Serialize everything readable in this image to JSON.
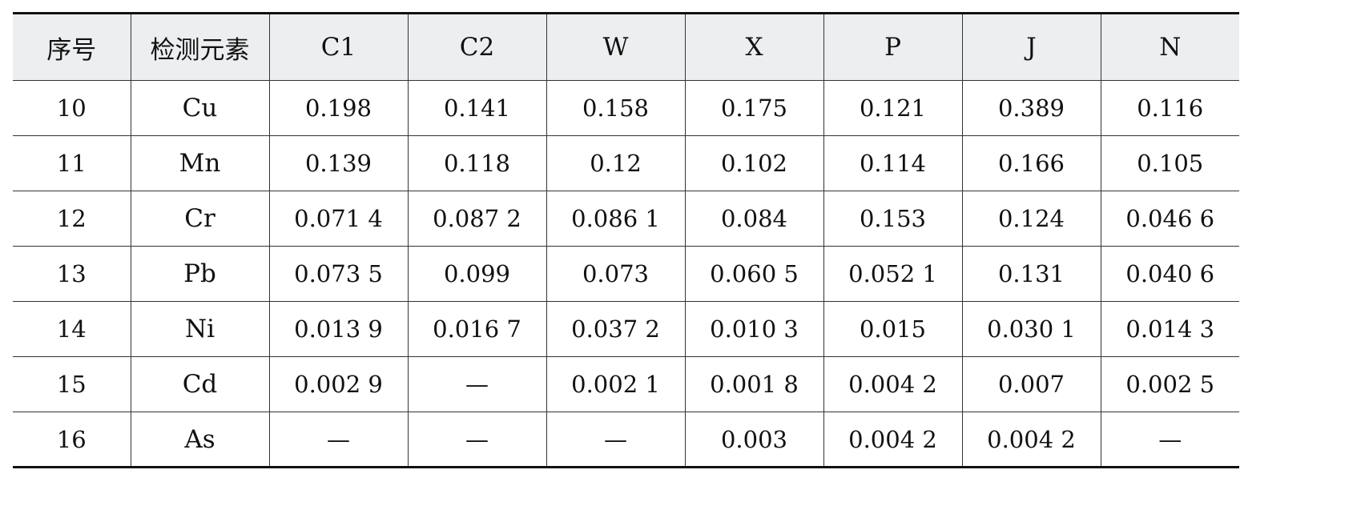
{
  "table": {
    "headers": [
      "序号",
      "检测元素",
      "C1",
      "C2",
      "W",
      "X",
      "P",
      "J",
      "N"
    ],
    "rows": [
      {
        "idx": "10",
        "element": "Cu",
        "values": [
          "0.198",
          "0.141",
          "0.158",
          "0.175",
          "0.121",
          "0.389",
          "0.116"
        ]
      },
      {
        "idx": "11",
        "element": "Mn",
        "values": [
          "0.139",
          "0.118",
          "0.12",
          "0.102",
          "0.114",
          "0.166",
          "0.105"
        ]
      },
      {
        "idx": "12",
        "element": "Cr",
        "values": [
          "0.071 4",
          "0.087 2",
          "0.086 1",
          "0.084",
          "0.153",
          "0.124",
          "0.046 6"
        ]
      },
      {
        "idx": "13",
        "element": "Pb",
        "values": [
          "0.073 5",
          "0.099",
          "0.073",
          "0.060 5",
          "0.052 1",
          "0.131",
          "0.040 6"
        ]
      },
      {
        "idx": "14",
        "element": "Ni",
        "values": [
          "0.013 9",
          "0.016 7",
          "0.037 2",
          "0.010 3",
          "0.015",
          "0.030 1",
          "0.014 3"
        ]
      },
      {
        "idx": "15",
        "element": "Cd",
        "values": [
          "0.002 9",
          "—",
          "0.002 1",
          "0.001 8",
          "0.004 2",
          "0.007",
          "0.002 5"
        ]
      },
      {
        "idx": "16",
        "element": "As",
        "values": [
          "—",
          "—",
          "—",
          "0.003",
          "0.004 2",
          "0.004 2",
          "—"
        ]
      }
    ]
  }
}
